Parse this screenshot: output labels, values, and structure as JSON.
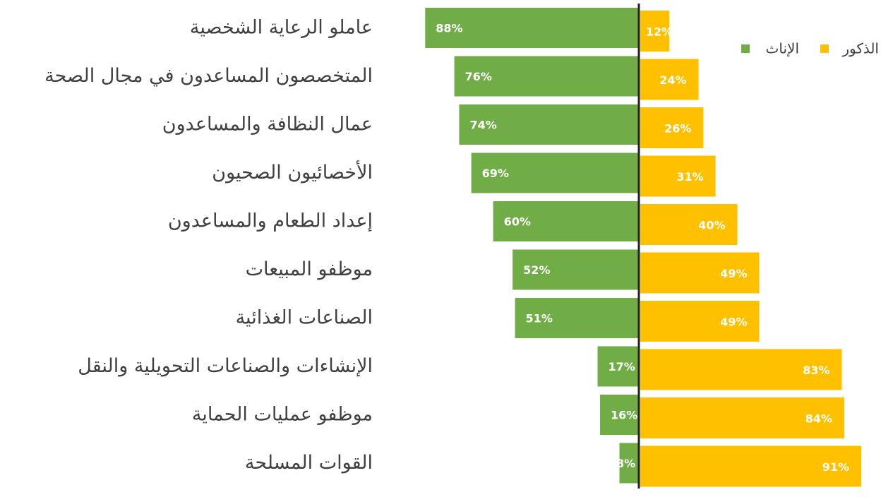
{
  "chart_data": {
    "type": "diverging-bar",
    "categories": [
      "عاملو الرعاية الشخصية",
      "المتخصصون المساعدون في مجال الصحة",
      "عمال النظافة والمساعدون",
      "الأخصائيون الصحيون",
      "إعداد الطعام والمساعدون",
      "موظفو المبيعات",
      "الصناعات الغذائية",
      "الإنشاءات والصناعات التحويلية والنقل",
      "موظفو عمليات الحماية",
      "القوات المسلحة"
    ],
    "series": [
      {
        "name": "الإناث",
        "color": "#70ad47",
        "values": [
          88,
          76,
          74,
          69,
          60,
          52,
          51,
          17,
          16,
          8
        ],
        "value_labels": [
          "88%",
          "76%",
          "74%",
          "69%",
          "60%",
          "52%",
          "51%",
          "17%",
          "16%",
          "8%"
        ]
      },
      {
        "name": "الذكور",
        "color": "#ffc000",
        "values": [
          12,
          24,
          26,
          31,
          40,
          49,
          49,
          83,
          84,
          91
        ],
        "value_labels": [
          "12%",
          "24%",
          "26%",
          "31%",
          "40%",
          "49%",
          "49%",
          "83%",
          "84%",
          "91%"
        ]
      }
    ],
    "legend": "top-right"
  }
}
